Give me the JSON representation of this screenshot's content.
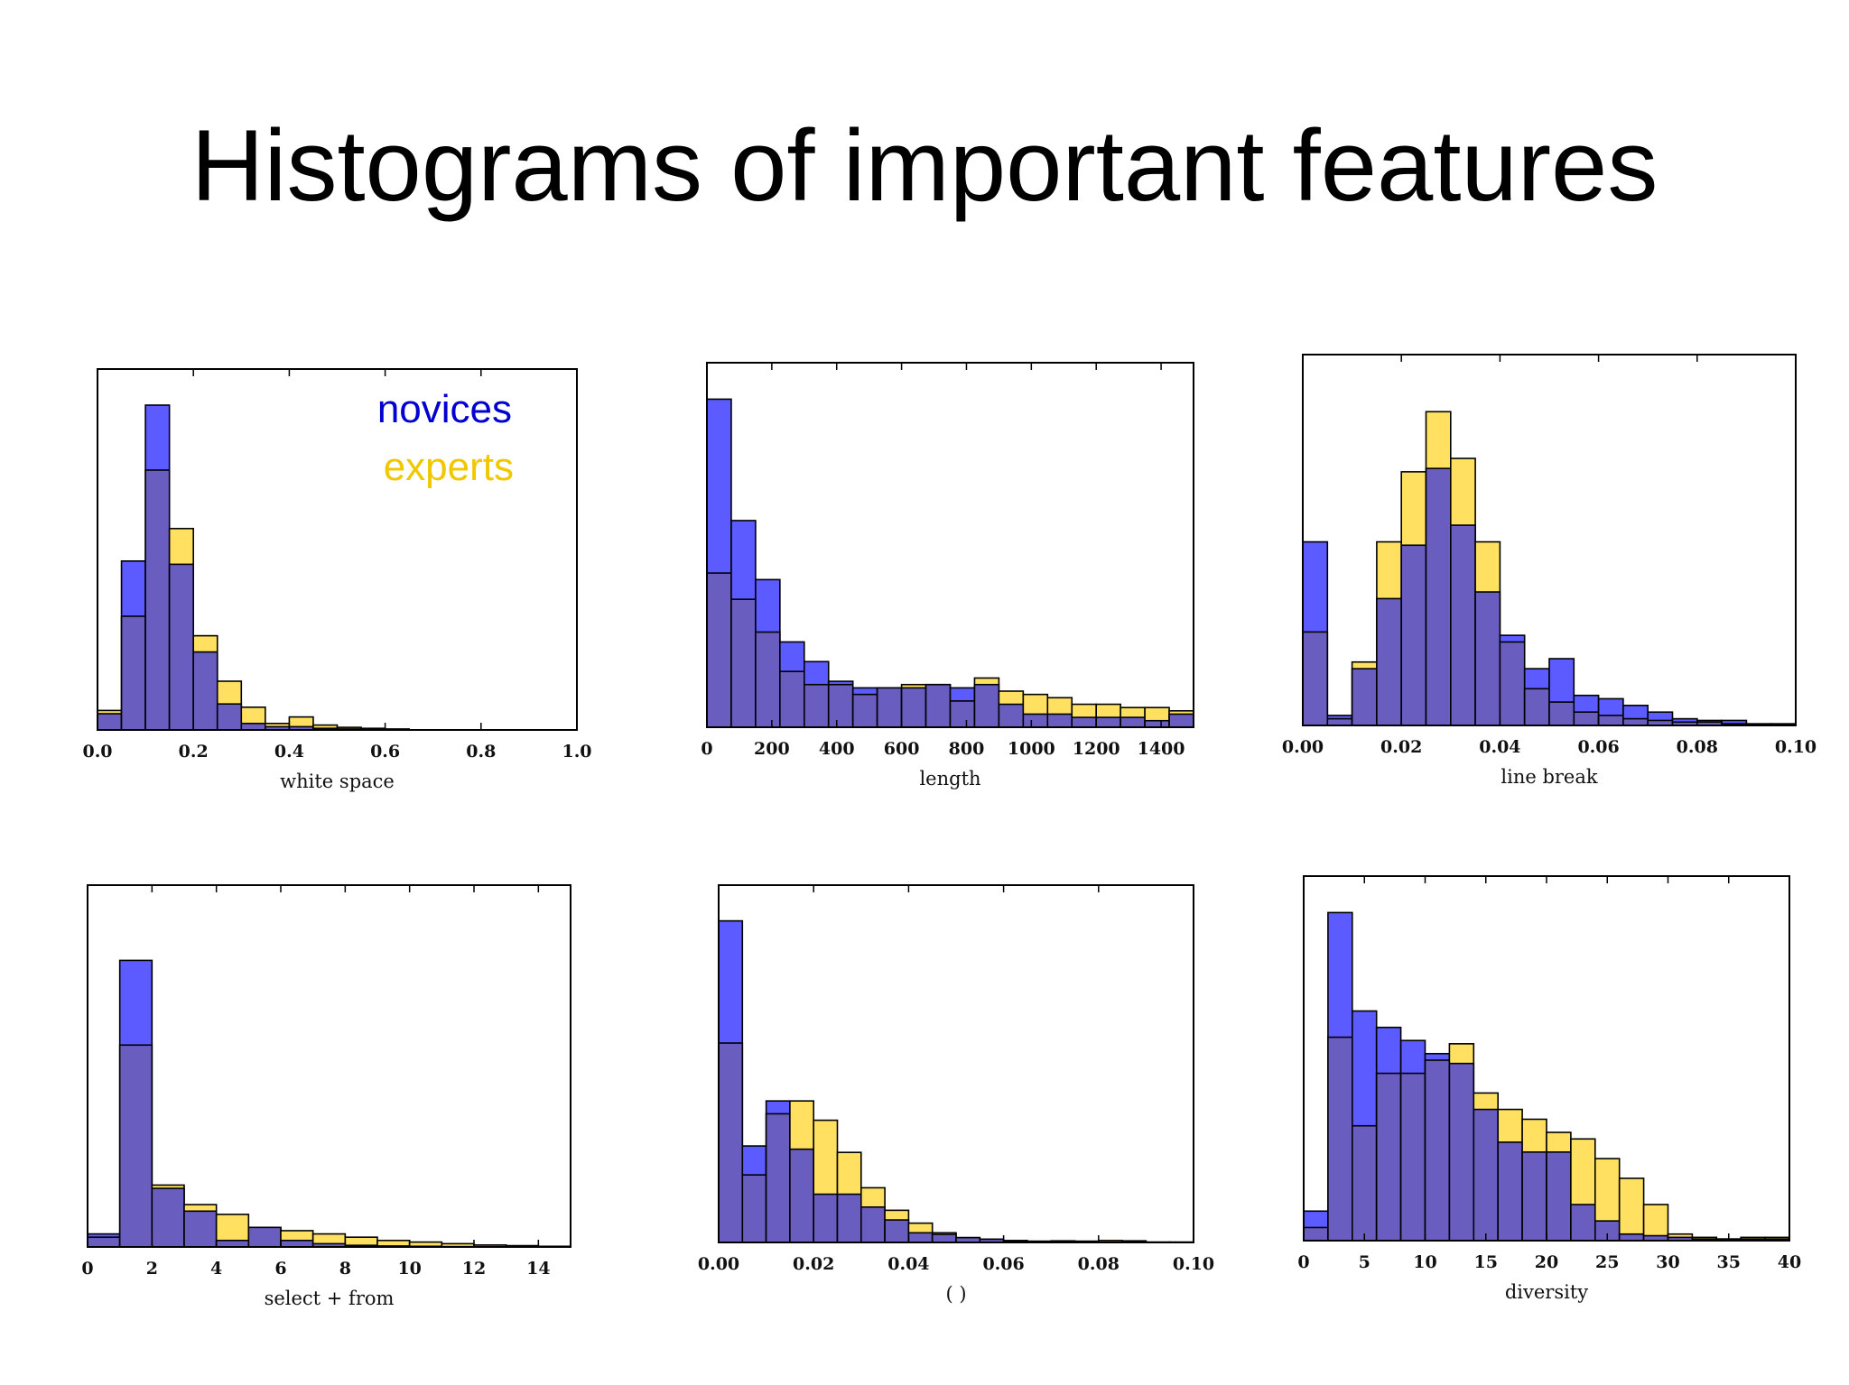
{
  "title": "Histograms of important features",
  "colors": {
    "novices": "#5b5bff",
    "experts": "#ffe060",
    "overlap": "#6a5dc0",
    "novices_text": "#0000d0",
    "experts_text": "#f0c800",
    "stroke": "#000000"
  },
  "chart_data": [
    {
      "type": "bar",
      "subtype": "overlapping-histogram",
      "xlabel": "white space",
      "xlim": [
        0.0,
        1.0
      ],
      "xticks": [
        "0.0",
        "0.2",
        "0.4",
        "0.6",
        "0.8",
        "1.0"
      ],
      "ylim": [
        0,
        100
      ],
      "legend": {
        "placement": "top-right",
        "entries": [
          "novices",
          "experts"
        ]
      },
      "bin_edges": [
        0.0,
        0.05,
        0.1,
        0.15,
        0.2,
        0.25,
        0.3,
        0.35,
        0.4,
        0.45,
        0.5,
        0.55,
        0.6,
        0.65
      ],
      "series": [
        {
          "name": "novices",
          "values": [
            5,
            52,
            100,
            51,
            24,
            8,
            2,
            1,
            1,
            0.5,
            0.3,
            0.2,
            0.1
          ]
        },
        {
          "name": "experts",
          "values": [
            6,
            35,
            80,
            62,
            29,
            15,
            7,
            2,
            4,
            1.5,
            0.8,
            0.5,
            0.3
          ]
        }
      ]
    },
    {
      "type": "bar",
      "subtype": "overlapping-histogram",
      "xlabel": "length",
      "xlim": [
        0,
        1500
      ],
      "xticks": [
        "0",
        "200",
        "400",
        "600",
        "800",
        "1000",
        "1200",
        "1400"
      ],
      "ylim": [
        0,
        100
      ],
      "bin_edges": [
        0,
        75,
        150,
        225,
        300,
        375,
        450,
        525,
        600,
        675,
        750,
        825,
        900,
        975,
        1050,
        1125,
        1200,
        1275,
        1350,
        1425,
        1500
      ],
      "series": [
        {
          "name": "novices",
          "values": [
            100,
            63,
            45,
            26,
            20,
            14,
            12,
            12,
            12,
            13,
            12,
            13,
            7,
            4,
            4,
            3,
            3,
            3,
            2,
            4
          ]
        },
        {
          "name": "experts",
          "values": [
            47,
            39,
            29,
            17,
            13,
            13,
            10,
            12,
            13,
            13,
            8,
            15,
            11,
            10,
            9,
            7,
            7,
            6,
            6,
            5
          ]
        }
      ]
    },
    {
      "type": "bar",
      "subtype": "overlapping-histogram",
      "xlabel": "line break",
      "xlim": [
        0.0,
        0.1
      ],
      "xticks": [
        "0.00",
        "0.02",
        "0.04",
        "0.06",
        "0.08",
        "0.10"
      ],
      "ylim": [
        0,
        100
      ],
      "bin_edges": [
        0.0,
        0.005,
        0.01,
        0.015,
        0.02,
        0.025,
        0.03,
        0.035,
        0.04,
        0.045,
        0.05,
        0.055,
        0.06,
        0.065,
        0.07,
        0.075,
        0.08,
        0.085,
        0.09,
        0.095,
        0.1
      ],
      "series": [
        {
          "name": "novices",
          "values": [
            55,
            3,
            17,
            38,
            54,
            77,
            60,
            40,
            27,
            17,
            20,
            9,
            8,
            6,
            4,
            2,
            1.5,
            1.5,
            0.5,
            0.5
          ]
        },
        {
          "name": "experts",
          "values": [
            28,
            2,
            19,
            55,
            76,
            94,
            80,
            55,
            25,
            11,
            7,
            4,
            3,
            2,
            1.5,
            1,
            1,
            0.5,
            0.3,
            0.3
          ]
        }
      ]
    },
    {
      "type": "bar",
      "subtype": "overlapping-histogram",
      "xlabel": "select + from",
      "xlim": [
        0,
        15
      ],
      "xticks": [
        "0",
        "2",
        "4",
        "6",
        "8",
        "10",
        "12",
        "14"
      ],
      "ylim": [
        0,
        100
      ],
      "bin_edges": [
        0,
        1,
        2,
        3,
        4,
        5,
        6,
        7,
        8,
        9,
        10,
        11,
        12,
        13,
        14,
        15
      ],
      "series": [
        {
          "name": "novices",
          "values": [
            4,
            88,
            18,
            11,
            2,
            6,
            2,
            1,
            0.5,
            0.3,
            0.2,
            0.1,
            0.1,
            0.1,
            0.1
          ]
        },
        {
          "name": "experts",
          "values": [
            3,
            62,
            19,
            13,
            10,
            6,
            5,
            4,
            3,
            2,
            1.5,
            1,
            0.6,
            0.4,
            0.2
          ]
        }
      ]
    },
    {
      "type": "bar",
      "subtype": "overlapping-histogram",
      "xlabel": "( )",
      "xlim": [
        0.0,
        0.1
      ],
      "xticks": [
        "0.00",
        "0.02",
        "0.04",
        "0.06",
        "0.08",
        "0.10"
      ],
      "ylim": [
        0,
        100
      ],
      "bin_edges": [
        0.0,
        0.005,
        0.01,
        0.015,
        0.02,
        0.025,
        0.03,
        0.035,
        0.04,
        0.045,
        0.05,
        0.055,
        0.06,
        0.065,
        0.07,
        0.075,
        0.08,
        0.085,
        0.09,
        0.095,
        0.1
      ],
      "series": [
        {
          "name": "novices",
          "values": [
            100,
            30,
            44,
            29,
            15,
            15,
            11,
            7,
            3,
            2.5,
            1.5,
            1,
            0.5,
            0.3,
            0.3,
            0.2,
            0.1,
            0.1,
            0.1,
            0.1
          ]
        },
        {
          "name": "experts",
          "values": [
            62,
            21,
            40,
            44,
            38,
            28,
            17,
            10,
            6,
            3,
            1.5,
            1,
            0.6,
            0.4,
            0.5,
            0.4,
            0.6,
            0.5,
            0.1,
            0.1
          ]
        }
      ]
    },
    {
      "type": "bar",
      "subtype": "overlapping-histogram",
      "xlabel": "diversity",
      "xlim": [
        0,
        40
      ],
      "xticks": [
        "0",
        "5",
        "10",
        "15",
        "20",
        "25",
        "30",
        "35",
        "40"
      ],
      "ylim": [
        0,
        100
      ],
      "bin_edges": [
        0,
        2,
        4,
        6,
        8,
        10,
        12,
        14,
        16,
        18,
        20,
        22,
        24,
        26,
        28,
        30,
        32,
        34,
        36,
        38,
        40
      ],
      "series": [
        {
          "name": "novices",
          "values": [
            9,
            100,
            70,
            65,
            61,
            57,
            54,
            40,
            30,
            27,
            27,
            11,
            6,
            2,
            1.5,
            1,
            0.5,
            0.5,
            0.5,
            0.5
          ]
        },
        {
          "name": "experts",
          "v0": 0,
          "values": [
            4,
            62,
            35,
            51,
            51,
            55,
            60,
            45,
            40,
            37,
            33,
            31,
            25,
            19,
            11,
            2,
            1,
            0.5,
            1,
            1
          ]
        }
      ]
    }
  ]
}
